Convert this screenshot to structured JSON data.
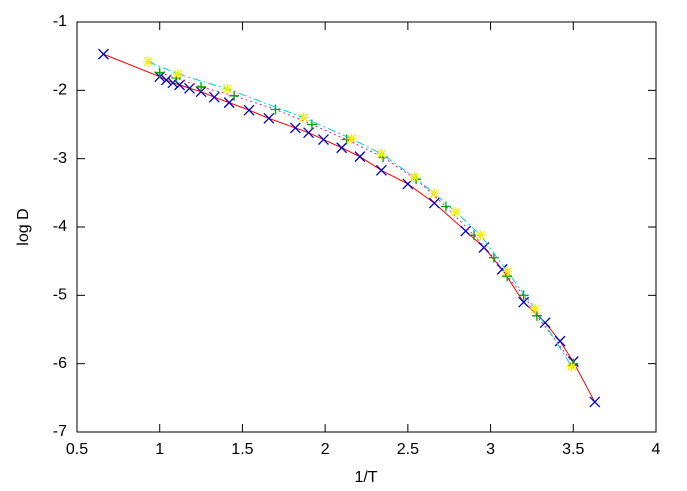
{
  "chart_data": {
    "type": "line",
    "x_label": "1/T",
    "y_label": "log D",
    "xlim": [
      0.5,
      4
    ],
    "ylim": [
      -7,
      -1
    ],
    "xticks": [
      0.5,
      1,
      1.5,
      2,
      2.5,
      3,
      3.5,
      4
    ],
    "yticks": [
      -7,
      -6,
      -5,
      -4,
      -3,
      -2,
      -1
    ],
    "series": [
      {
        "line_color": "#ff0000",
        "marker_color": "#0000c0",
        "marker": "x",
        "dash": "solid",
        "x": [
          0.66,
          1.0,
          1.04,
          1.08,
          1.12,
          1.18,
          1.25,
          1.33,
          1.42,
          1.54,
          1.66,
          1.82,
          1.9,
          1.99,
          2.1,
          2.21,
          2.34,
          2.5,
          2.66,
          2.85,
          2.96,
          3.07,
          3.2,
          3.33,
          3.42,
          3.5,
          3.63
        ],
        "values": [
          -1.47,
          -1.8,
          -1.85,
          -1.89,
          -1.92,
          -1.97,
          -2.02,
          -2.1,
          -2.18,
          -2.29,
          -2.41,
          -2.55,
          -2.62,
          -2.72,
          -2.84,
          -2.97,
          -3.17,
          -3.37,
          -3.65,
          -4.06,
          -4.3,
          -4.62,
          -5.1,
          -5.4,
          -5.67,
          -5.97,
          -6.56
        ]
      },
      {
        "line_color": "#e0208f",
        "marker_color": "#00a000",
        "marker": "+",
        "dash": "dotted",
        "x": [
          1.0,
          1.1,
          1.25,
          1.45,
          1.7,
          1.92,
          2.13,
          2.35,
          2.55,
          2.73,
          2.9,
          3.02,
          3.1,
          3.2,
          3.28,
          3.5
        ],
        "values": [
          -1.74,
          -1.82,
          -1.95,
          -2.08,
          -2.28,
          -2.5,
          -2.72,
          -2.98,
          -3.3,
          -3.7,
          -4.12,
          -4.45,
          -4.72,
          -5.0,
          -5.3,
          -6.0
        ]
      },
      {
        "line_color": "#00d0d0",
        "marker_color": "#f0f000",
        "marker": "star",
        "dash": "dashdot",
        "x": [
          0.93,
          1.11,
          1.41,
          1.87,
          2.16,
          2.34,
          2.54,
          2.66,
          2.79,
          2.94,
          3.1,
          3.27,
          3.49
        ],
        "values": [
          -1.58,
          -1.76,
          -1.98,
          -2.4,
          -2.71,
          -2.93,
          -3.27,
          -3.51,
          -3.78,
          -4.12,
          -4.65,
          -5.2,
          -6.04
        ]
      }
    ]
  }
}
